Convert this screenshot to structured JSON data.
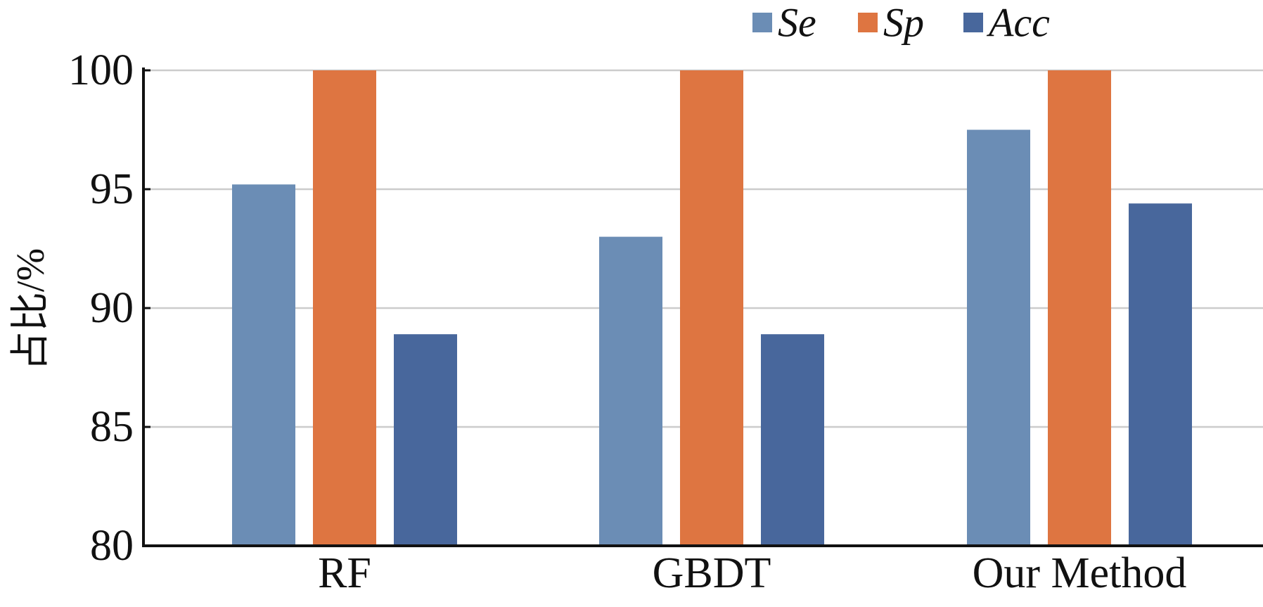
{
  "chart_data": {
    "type": "bar",
    "title": "",
    "xlabel": "",
    "ylabel": "占比/%",
    "categories": [
      "RF",
      "GBDT",
      "Our Method"
    ],
    "series": [
      {
        "name": "Se",
        "values": [
          95.2,
          93.0,
          97.5
        ],
        "color": "#6b8db5"
      },
      {
        "name": "Sp",
        "values": [
          100,
          100,
          100
        ],
        "color": "#de7541"
      },
      {
        "name": "Acc",
        "values": [
          88.9,
          88.9,
          94.4
        ],
        "color": "#48679c"
      }
    ],
    "ylim": [
      80,
      100
    ],
    "yticks": [
      "80",
      "85",
      "90",
      "95",
      "100"
    ],
    "grid": true,
    "grid_color": "#cccccc",
    "legend_position": "top-right"
  }
}
